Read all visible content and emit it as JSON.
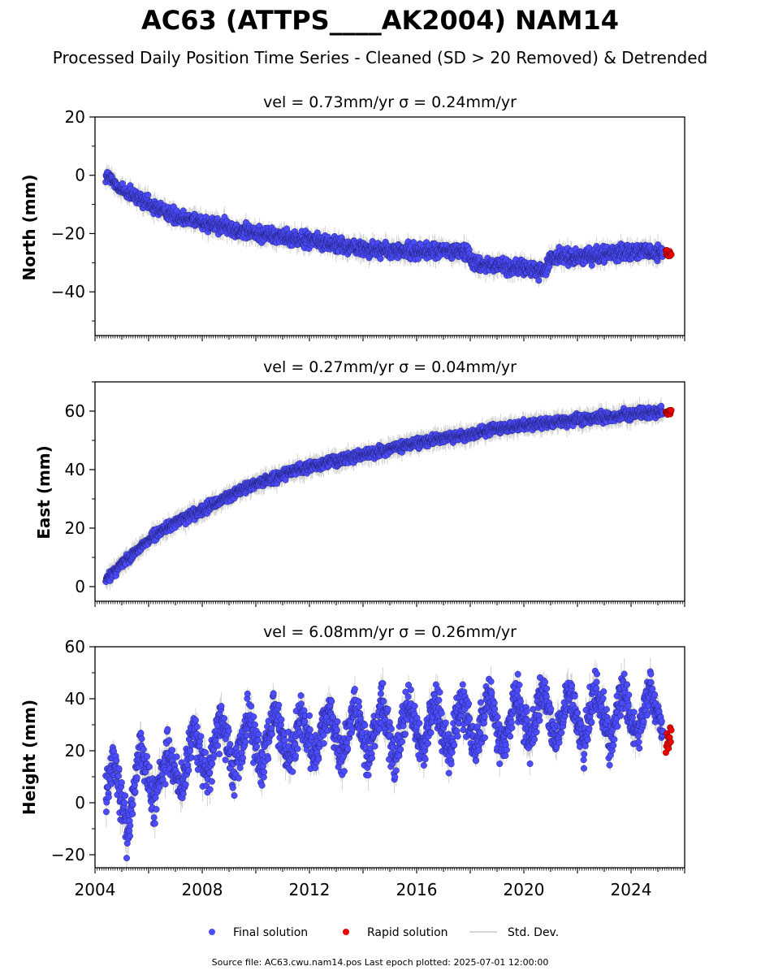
{
  "title": "AC63 (ATTPS____AK2004) NAM14",
  "subtitle": "Processed Daily Position Time Series - Cleaned (SD > 20 Removed) & Detrended",
  "footer": "Source file: AC63.cwu.nam14.pos  Last epoch plotted: 2025-07-01 12:00:00",
  "colors": {
    "final": "#4b4bff",
    "rapid": "#ee0000",
    "stddev": "#c8c8c8",
    "edge": "#000000"
  },
  "legend": {
    "final": "Final solution",
    "rapid": "Rapid solution",
    "stddev": "Std. Dev."
  },
  "chart_data": [
    {
      "type": "scatter",
      "panel_title": "vel = 0.73mm/yr   σ = 0.24mm/yr",
      "ylabel": "North (mm)",
      "xlim": [
        2004.0,
        2026.0
      ],
      "ylim": [
        -55,
        20
      ],
      "y_ticks": [
        20,
        0,
        -20,
        -40
      ],
      "y_tick_labels": [
        "20",
        "0",
        "−20",
        "−40"
      ],
      "series": [
        {
          "name": "Final solution",
          "x": [
            2004.4,
            2005.0,
            2006.0,
            2007.0,
            2008.0,
            2009.0,
            2010.0,
            2011.0,
            2012.0,
            2013.0,
            2014.0,
            2015.0,
            2016.0,
            2017.0,
            2017.9,
            2018.1,
            2019.0,
            2020.0,
            2020.8,
            2021.0,
            2022.0,
            2023.0,
            2024.0,
            2025.2
          ],
          "y": [
            0,
            -5,
            -10,
            -14,
            -16,
            -18,
            -20,
            -21,
            -22,
            -24,
            -25,
            -26,
            -26,
            -26,
            -26,
            -30,
            -31,
            -32,
            -33,
            -28,
            -28,
            -27,
            -26,
            -27
          ],
          "scatter": 2.2
        },
        {
          "name": "Rapid solution",
          "x": [
            2025.3,
            2025.5
          ],
          "y": [
            -27,
            -28
          ],
          "scatter": 1.2
        }
      ]
    },
    {
      "type": "scatter",
      "panel_title": "vel = 0.27mm/yr   σ = 0.04mm/yr",
      "ylabel": "East (mm)",
      "xlim": [
        2004.0,
        2026.0
      ],
      "ylim": [
        -5,
        70
      ],
      "y_ticks": [
        60,
        40,
        20,
        0
      ],
      "y_tick_labels": [
        "60",
        "40",
        "20",
        "0"
      ],
      "series": [
        {
          "name": "Final solution",
          "x": [
            2004.4,
            2005.0,
            2006.0,
            2007.0,
            2008.0,
            2009.0,
            2010.0,
            2011.0,
            2012.0,
            2013.0,
            2014.0,
            2015.0,
            2016.0,
            2017.0,
            2018.0,
            2019.0,
            2020.0,
            2021.0,
            2022.0,
            2023.0,
            2024.0,
            2025.2
          ],
          "y": [
            2,
            8,
            16,
            22,
            26,
            31,
            35,
            38,
            41,
            43,
            45,
            47,
            49,
            51,
            52,
            54,
            55,
            56,
            57,
            58,
            59,
            60
          ],
          "scatter": 1.5
        },
        {
          "name": "Rapid solution",
          "x": [
            2025.3,
            2025.5
          ],
          "y": [
            59,
            60
          ],
          "scatter": 1.0
        }
      ]
    },
    {
      "type": "scatter",
      "panel_title": "vel = 6.08mm/yr   σ = 0.26mm/yr",
      "ylabel": "Height (mm)",
      "xlim": [
        2004.0,
        2026.0
      ],
      "ylim": [
        -25,
        60
      ],
      "y_ticks": [
        60,
        40,
        20,
        0,
        -20
      ],
      "y_tick_labels": [
        "60",
        "40",
        "20",
        "0",
        "−20"
      ],
      "x_ticks": [
        2004,
        2008,
        2012,
        2016,
        2020,
        2024
      ],
      "series": [
        {
          "name": "Final solution",
          "x": [
            2004.4,
            2004.7,
            2005.2,
            2005.7,
            2006.2,
            2006.7,
            2007.2,
            2007.7,
            2008.2,
            2008.7,
            2009.2,
            2009.7,
            2010.2,
            2010.7,
            2011.2,
            2011.7,
            2012.2,
            2012.7,
            2013.2,
            2013.7,
            2014.2,
            2014.7,
            2015.2,
            2015.7,
            2016.2,
            2016.7,
            2017.2,
            2017.7,
            2018.2,
            2018.7,
            2019.2,
            2019.7,
            2020.2,
            2020.7,
            2021.2,
            2021.7,
            2022.2,
            2022.7,
            2023.2,
            2023.7,
            2024.2,
            2024.7,
            2025.2
          ],
          "y": [
            5,
            18,
            -12,
            22,
            -2,
            20,
            5,
            28,
            10,
            32,
            12,
            33,
            15,
            36,
            15,
            34,
            16,
            36,
            17,
            37,
            18,
            38,
            18,
            39,
            19,
            40,
            19,
            40,
            20,
            42,
            20,
            42,
            22,
            44,
            22,
            43,
            22,
            44,
            23,
            45,
            23,
            45,
            25
          ],
          "scatter": 7
        },
        {
          "name": "Rapid solution",
          "x": [
            2025.3,
            2025.5
          ],
          "y": [
            22,
            28
          ],
          "scatter": 4
        }
      ]
    }
  ]
}
